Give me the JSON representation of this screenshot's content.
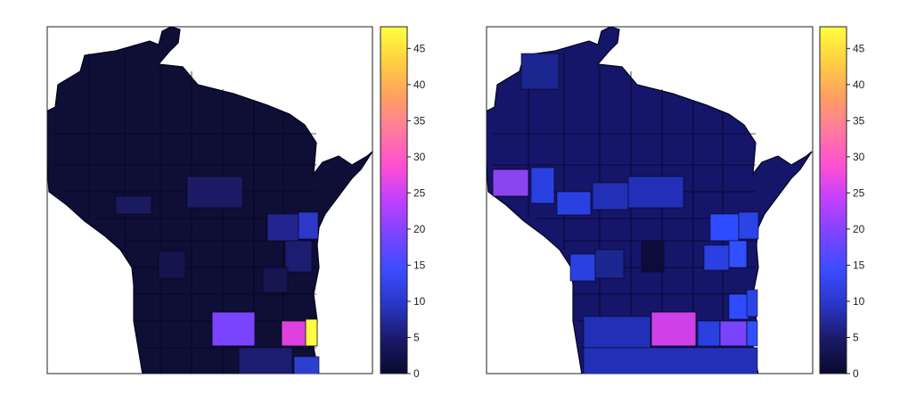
{
  "colorbar": {
    "ticks": [
      "0",
      "5",
      "10",
      "15",
      "20",
      "25",
      "30",
      "35",
      "40",
      "45"
    ],
    "min": 0,
    "max": 48,
    "palette": [
      "#0a0a2e",
      "#1a1a6a",
      "#2a36c8",
      "#3b4cff",
      "#7a44ff",
      "#c040ff",
      "#ff4fd0",
      "#ff7aa0",
      "#ffa060",
      "#ffd040",
      "#ffff40"
    ]
  },
  "panels": [
    {
      "name": "left-map",
      "highlights": [
        {
          "region": "south-central county",
          "value": 18
        },
        {
          "region": "southeast county",
          "value": 27
        },
        {
          "region": "lakeshore county",
          "value": 48
        },
        {
          "region": "east-central counties",
          "value": 8
        }
      ]
    },
    {
      "name": "right-map",
      "highlights": [
        {
          "region": "western border county",
          "value": 20
        },
        {
          "region": "south-central county",
          "value": 28
        },
        {
          "region": "southeast county",
          "value": 18
        },
        {
          "region": "east-central counties",
          "value": 11
        }
      ]
    }
  ]
}
